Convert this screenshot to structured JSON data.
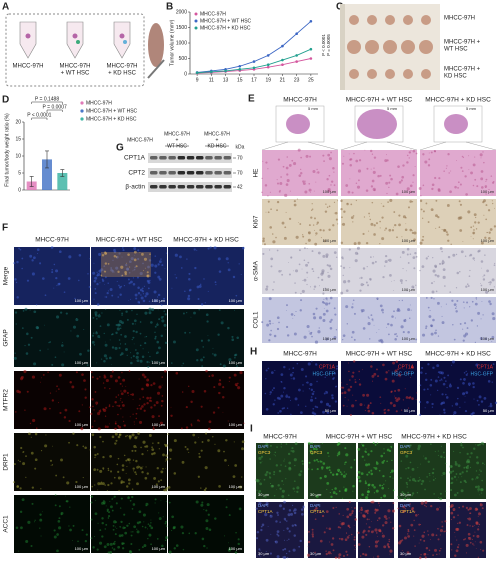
{
  "chart_data": [
    {
      "type": "line",
      "label": "B",
      "y_label": "Tumor volume (mm³)",
      "x": [
        9,
        11,
        13,
        15,
        17,
        19,
        21,
        23,
        25
      ],
      "xlim": [
        8,
        26
      ],
      "xticks": [
        9,
        11,
        13,
        15,
        17,
        19,
        21,
        23,
        25
      ],
      "ylim": [
        0,
        2000
      ],
      "yticks": [
        0,
        500,
        1000,
        1500,
        2000
      ],
      "series": [
        {
          "name": "MHCC-97H",
          "color": "#d4569e",
          "values": [
            30,
            50,
            80,
            110,
            150,
            220,
            300,
            400,
            500
          ]
        },
        {
          "name": "MHCC-97H + WT HSC",
          "color": "#3b66c4",
          "values": [
            50,
            100,
            150,
            250,
            400,
            600,
            900,
            1300,
            1700
          ]
        },
        {
          "name": "MHCC-97H + KD HSC",
          "color": "#22a08f",
          "values": [
            40,
            70,
            100,
            150,
            200,
            300,
            450,
            600,
            800
          ]
        }
      ],
      "annotations": [
        "P < 0.0001",
        "P = 0.0005"
      ]
    },
    {
      "type": "bar",
      "label": "D",
      "y_label": "Final tumor/body weight ratio (%)",
      "categories": [
        "MHCC-97H",
        "MHCC-97H + WT HSC",
        "MHCC-97H + KD HSC"
      ],
      "values": [
        2.5,
        9,
        5
      ],
      "errors": [
        1.5,
        2.5,
        1
      ],
      "colors": [
        "#e07ab8",
        "#4a78c8",
        "#3fb5a5"
      ],
      "ylim": [
        0,
        20
      ],
      "yticks": [
        0,
        5,
        10,
        15,
        20
      ],
      "annotations": [
        "P = 0.1488",
        "P = 0.0007",
        "P < 0.0001"
      ]
    }
  ],
  "panels": {
    "A": {
      "label": "A",
      "groups": [
        [
          "MHCC-97H"
        ],
        [
          "MHCC-97H",
          "+ WT HSC"
        ],
        [
          "MHCC-97H",
          "+ KD HSC"
        ]
      ]
    },
    "C": {
      "label": "C",
      "groups": [
        [
          "MHCC-97H"
        ],
        [
          "MHCC-97H +",
          "WT HSC"
        ],
        [
          "MHCC-97H +",
          "KD HSC"
        ]
      ]
    },
    "E": {
      "label": "E",
      "columns": [
        "MHCC-97H",
        "MHCC-97H + WT HSC",
        "MHCC-97H + KD HSC"
      ],
      "rows": [
        "HE",
        "Ki67",
        "α-SMA",
        "COL1"
      ],
      "scale_bar": "100 μm",
      "organ_scale": "5 mm"
    },
    "F": {
      "label": "F",
      "columns": [
        "MHCC-97H",
        "MHCC-97H + WT HSC",
        "MHCC-97H + KD HSC"
      ],
      "rows": [
        "Merge",
        "GFAP",
        "MTFR2",
        "DRP1",
        "ACC1"
      ],
      "scale_bar": "100 μm"
    },
    "G": {
      "label": "G",
      "columns": [
        [
          "MHCC-97H"
        ],
        [
          "MHCC-97H",
          "+",
          "WT HSC"
        ],
        [
          "MHCC-97H",
          "+",
          "KD HSC"
        ]
      ],
      "rows": [
        "CPT1A",
        "CPT2",
        "β-actin"
      ],
      "unit": "kDa",
      "sizes": [
        70,
        70,
        42
      ]
    },
    "H": {
      "label": "H",
      "columns": [
        "MHCC-97H",
        "MHCC-97H + WT HSC",
        "MHCC-97H + KD HSC"
      ],
      "stains": [
        "CPT1A",
        "HSC-GFP"
      ],
      "scale_bar": "50 μm"
    },
    "I": {
      "label": "I",
      "columns": [
        "MHCC-97H",
        "MHCC-97H + WT HSC",
        "MHCC-97H + KD HSC"
      ],
      "stains": [
        "DAPI",
        "CPT1A",
        "GPC3"
      ],
      "scale_bar": "30 μm"
    }
  }
}
